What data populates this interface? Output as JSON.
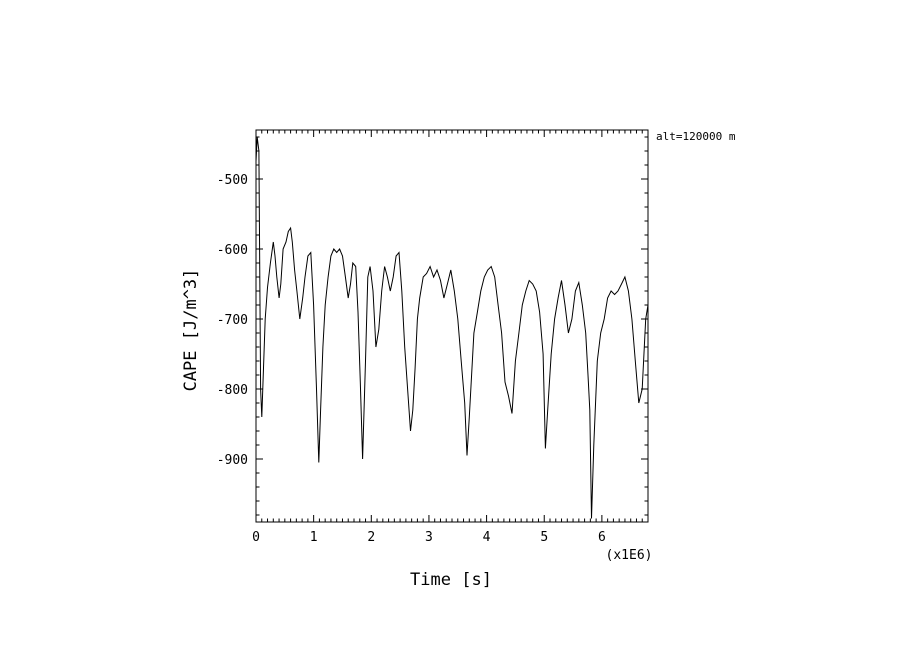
{
  "chart_data": {
    "type": "line",
    "title": "",
    "xlabel": "Time [s]",
    "ylabel": "CAPE [J/m^3]",
    "x_multiplier_label": "(x1E6)",
    "annotation": "alt=120000 m",
    "xlim": [
      0,
      6.8
    ],
    "ylim": [
      -990,
      -430
    ],
    "x_ticks": [
      0,
      1,
      2,
      3,
      4,
      5,
      6
    ],
    "y_ticks": [
      -500,
      -600,
      -700,
      -800,
      -900
    ],
    "grid": false,
    "legend": "none",
    "line_color": "#000000",
    "series": [
      {
        "x": [
          0.0,
          0.02,
          0.05,
          0.08,
          0.1,
          0.13,
          0.16,
          0.2,
          0.25,
          0.3,
          0.33,
          0.36,
          0.4,
          0.43,
          0.47,
          0.52,
          0.56,
          0.6,
          0.63,
          0.67,
          0.71,
          0.76,
          0.81,
          0.85,
          0.9,
          0.95,
          1.0,
          1.05,
          1.09,
          1.12,
          1.16,
          1.2,
          1.25,
          1.3,
          1.35,
          1.4,
          1.45,
          1.5,
          1.55,
          1.6,
          1.64,
          1.68,
          1.73,
          1.77,
          1.81,
          1.85,
          1.9,
          1.94,
          1.98,
          2.03,
          2.08,
          2.13,
          2.18,
          2.23,
          2.28,
          2.33,
          2.38,
          2.43,
          2.48,
          2.53,
          2.58,
          2.63,
          2.68,
          2.72,
          2.76,
          2.8,
          2.84,
          2.9,
          2.96,
          3.02,
          3.08,
          3.14,
          3.2,
          3.26,
          3.32,
          3.38,
          3.44,
          3.5,
          3.56,
          3.62,
          3.66,
          3.7,
          3.74,
          3.78,
          3.84,
          3.9,
          3.96,
          4.02,
          4.08,
          4.14,
          4.2,
          4.26,
          4.32,
          4.38,
          4.44,
          4.5,
          4.56,
          4.62,
          4.68,
          4.74,
          4.8,
          4.86,
          4.92,
          4.98,
          5.02,
          5.06,
          5.12,
          5.18,
          5.24,
          5.3,
          5.36,
          5.42,
          5.48,
          5.54,
          5.6,
          5.66,
          5.72,
          5.76,
          5.79,
          5.82,
          5.86,
          5.92,
          5.98,
          6.04,
          6.1,
          6.16,
          6.22,
          6.28,
          6.34,
          6.4,
          6.46,
          6.52,
          6.58,
          6.64,
          6.7,
          6.76,
          6.8
        ],
        "y": [
          -475,
          -440,
          -460,
          -800,
          -840,
          -770,
          -700,
          -655,
          -620,
          -590,
          -610,
          -640,
          -670,
          -650,
          -600,
          -590,
          -575,
          -570,
          -590,
          -630,
          -660,
          -700,
          -670,
          -640,
          -610,
          -605,
          -680,
          -800,
          -905,
          -830,
          -740,
          -680,
          -640,
          -610,
          -600,
          -605,
          -600,
          -610,
          -640,
          -670,
          -650,
          -620,
          -625,
          -690,
          -790,
          -900,
          -760,
          -640,
          -625,
          -660,
          -740,
          -715,
          -660,
          -625,
          -640,
          -660,
          -640,
          -610,
          -605,
          -660,
          -740,
          -800,
          -860,
          -830,
          -770,
          -700,
          -670,
          -640,
          -635,
          -625,
          -640,
          -630,
          -645,
          -670,
          -650,
          -630,
          -660,
          -700,
          -760,
          -820,
          -895,
          -840,
          -780,
          -720,
          -690,
          -660,
          -640,
          -630,
          -625,
          -640,
          -680,
          -720,
          -790,
          -810,
          -835,
          -760,
          -720,
          -680,
          -660,
          -645,
          -650,
          -660,
          -690,
          -750,
          -885,
          -830,
          -750,
          -700,
          -670,
          -645,
          -680,
          -720,
          -700,
          -660,
          -648,
          -680,
          -720,
          -780,
          -830,
          -985,
          -880,
          -760,
          -720,
          -700,
          -670,
          -660,
          -665,
          -660,
          -650,
          -640,
          -660,
          -700,
          -760,
          -820,
          -800,
          -700,
          -680
        ]
      }
    ]
  }
}
